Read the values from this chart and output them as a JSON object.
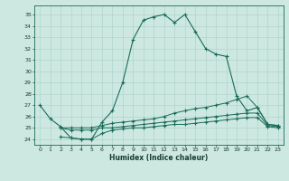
{
  "xlabel": "Humidex (Indice chaleur)",
  "background_color": "#cce8e0",
  "grid_color": "#aacfc8",
  "line_color": "#1a6b5a",
  "xlim": [
    -0.5,
    23.5
  ],
  "ylim": [
    23.5,
    35.8
  ],
  "xticks": [
    0,
    1,
    2,
    3,
    4,
    5,
    6,
    7,
    8,
    9,
    10,
    11,
    12,
    13,
    14,
    15,
    16,
    17,
    18,
    19,
    20,
    21,
    22,
    23
  ],
  "yticks": [
    24,
    25,
    26,
    27,
    28,
    29,
    30,
    31,
    32,
    33,
    34,
    35
  ],
  "line1_x": [
    0,
    1,
    2,
    3,
    4,
    5,
    6,
    7,
    8,
    9,
    10,
    11,
    12,
    13,
    14,
    15,
    16,
    17,
    18,
    19,
    20,
    21,
    22,
    23
  ],
  "line1_y": [
    27.0,
    25.8,
    25.1,
    24.1,
    24.0,
    24.0,
    25.5,
    26.5,
    29.0,
    32.8,
    34.5,
    34.8,
    35.0,
    34.3,
    35.0,
    33.5,
    32.0,
    31.5,
    31.3,
    27.8,
    26.5,
    26.8,
    25.3,
    25.2
  ],
  "line2_x": [
    2,
    3,
    4,
    5,
    6,
    7,
    8,
    9,
    10,
    11,
    12,
    13,
    14,
    15,
    16,
    17,
    18,
    19,
    20,
    21,
    22,
    23
  ],
  "line2_y": [
    25.0,
    25.0,
    25.0,
    25.0,
    25.2,
    25.4,
    25.5,
    25.6,
    25.7,
    25.8,
    26.0,
    26.3,
    26.5,
    26.7,
    26.8,
    27.0,
    27.2,
    27.5,
    27.8,
    26.8,
    25.3,
    25.2
  ],
  "line3_x": [
    2,
    3,
    4,
    5,
    6,
    7,
    8,
    9,
    10,
    11,
    12,
    13,
    14,
    15,
    16,
    17,
    18,
    19,
    20,
    21,
    22,
    23
  ],
  "line3_y": [
    25.0,
    24.8,
    24.8,
    24.8,
    25.0,
    25.0,
    25.1,
    25.2,
    25.3,
    25.4,
    25.5,
    25.6,
    25.7,
    25.8,
    25.9,
    26.0,
    26.1,
    26.2,
    26.3,
    26.3,
    25.2,
    25.1
  ],
  "line4_x": [
    2,
    3,
    4,
    5,
    6,
    7,
    8,
    9,
    10,
    11,
    12,
    13,
    14,
    15,
    16,
    17,
    18,
    19,
    20,
    21,
    22,
    23
  ],
  "line4_y": [
    24.2,
    24.1,
    24.0,
    24.0,
    24.5,
    24.8,
    24.9,
    25.0,
    25.0,
    25.1,
    25.2,
    25.3,
    25.3,
    25.4,
    25.5,
    25.6,
    25.7,
    25.8,
    25.9,
    25.9,
    25.1,
    25.0
  ]
}
